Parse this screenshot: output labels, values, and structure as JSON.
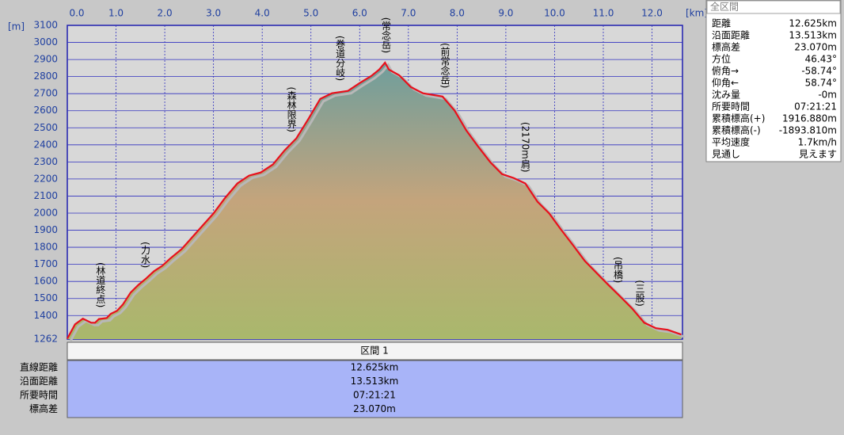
{
  "chart_data": {
    "type": "area",
    "x_label": "[km]",
    "y_label": "[m]",
    "x": [
      0,
      0.16,
      0.32,
      0.49,
      0.57,
      0.65,
      0.81,
      0.89,
      1.02,
      1.14,
      1.3,
      1.46,
      1.62,
      1.78,
      1.95,
      2.11,
      2.35,
      2.68,
      3.0,
      3.24,
      3.49,
      3.73,
      3.97,
      4.22,
      4.46,
      4.7,
      4.95,
      5.19,
      5.43,
      5.76,
      6.0,
      6.24,
      6.4,
      6.52,
      6.6,
      6.81,
      7.05,
      7.3,
      7.7,
      7.95,
      8.19,
      8.43,
      8.68,
      8.92,
      9.16,
      9.4,
      9.65,
      9.89,
      10.13,
      10.38,
      10.62,
      10.86,
      11.1,
      11.35,
      11.59,
      11.84,
      12.08,
      12.32,
      12.6
    ],
    "values": [
      1265,
      1349,
      1382,
      1358,
      1358,
      1380,
      1386,
      1410,
      1428,
      1465,
      1535,
      1580,
      1618,
      1660,
      1692,
      1734,
      1790,
      1896,
      1998,
      2090,
      2174,
      2220,
      2238,
      2285,
      2368,
      2438,
      2553,
      2669,
      2702,
      2716,
      2762,
      2804,
      2841,
      2882,
      2841,
      2808,
      2739,
      2702,
      2683,
      2600,
      2484,
      2391,
      2299,
      2229,
      2206,
      2174,
      2067,
      1998,
      1905,
      1812,
      1720,
      1650,
      1581,
      1511,
      1442,
      1358,
      1326,
      1317,
      1289
    ],
    "xlim": [
      0,
      12.625
    ],
    "ylim": [
      1262,
      3100
    ],
    "xticks": [
      {
        "value": 0,
        "label": "0.0"
      },
      {
        "value": 1,
        "label": "1.0"
      },
      {
        "value": 2,
        "label": "2.0"
      },
      {
        "value": 3,
        "label": "3.0"
      },
      {
        "value": 4,
        "label": "4.0"
      },
      {
        "value": 5,
        "label": "5.0"
      },
      {
        "value": 6,
        "label": "6.0"
      },
      {
        "value": 7,
        "label": "7.0"
      },
      {
        "value": 8,
        "label": "8.0"
      },
      {
        "value": 9,
        "label": "9.0"
      },
      {
        "value": 10,
        "label": "10.0"
      },
      {
        "value": 11,
        "label": "11.0"
      },
      {
        "value": 12,
        "label": "12.0"
      }
    ],
    "yticks": [
      1262,
      1400,
      1500,
      1600,
      1700,
      1800,
      1900,
      2000,
      2100,
      2200,
      2300,
      2400,
      2500,
      2600,
      2700,
      2800,
      2900,
      3000,
      3100
    ],
    "grid": true,
    "line_color": "#e8101c",
    "annotations": [
      {
        "text": "(林道終点)",
        "x": 0.68
      },
      {
        "text": "(力水)",
        "x": 1.6
      },
      {
        "text": "(森林限界)",
        "x": 4.6
      },
      {
        "text": "(巻道分岐)",
        "x": 5.6
      },
      {
        "text": "(常念岳)",
        "x": 6.54
      },
      {
        "text": "(前常念岳)",
        "x": 7.75
      },
      {
        "text": "(2170m肩)",
        "x": 9.4
      },
      {
        "text": "(吊橋)",
        "x": 11.3
      },
      {
        "text": "(三股)",
        "x": 11.75
      }
    ]
  },
  "summary_panel": {
    "title": "全区間",
    "rows": [
      [
        "距離",
        "12.625km"
      ],
      [
        "沿面距離",
        "13.513km"
      ],
      [
        "標高差",
        "23.070m"
      ],
      [
        "方位",
        "46.43°"
      ],
      [
        "俯角→",
        "-58.74°"
      ],
      [
        "仰角←",
        "58.74°"
      ],
      [
        "沈み量",
        "-0m"
      ],
      [
        "所要時間",
        "07:21:21"
      ],
      [
        "累積標高(+)",
        "1916.880m"
      ],
      [
        "累積標高(-)",
        "-1893.810m"
      ],
      [
        "平均速度",
        "1.7km/h"
      ],
      [
        "見通し",
        "見えます"
      ]
    ]
  },
  "section": {
    "title": "区間 1",
    "rows": [
      [
        "直線距離",
        "12.625km"
      ],
      [
        "沿面距離",
        "13.513km"
      ],
      [
        "所要時間",
        "07:21:21"
      ],
      [
        "標高差",
        "23.070m"
      ]
    ]
  }
}
